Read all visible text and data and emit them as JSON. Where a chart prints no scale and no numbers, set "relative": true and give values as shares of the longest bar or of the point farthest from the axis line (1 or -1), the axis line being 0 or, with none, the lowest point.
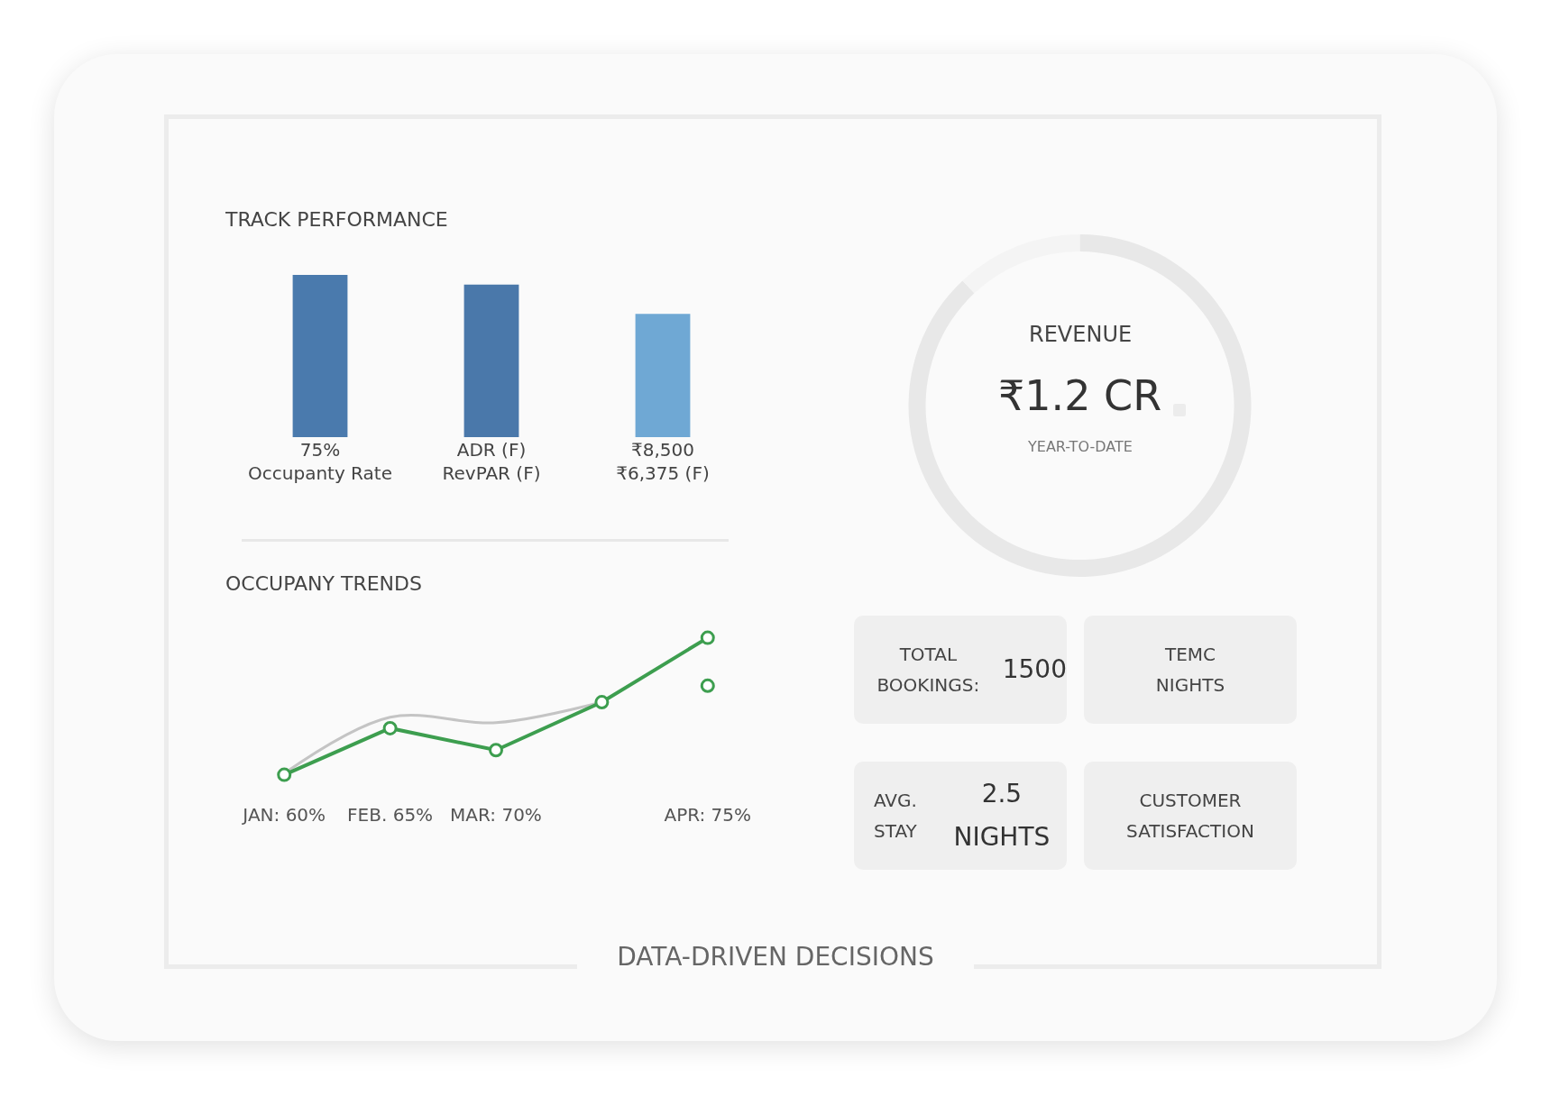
{
  "chart_data": [
    {
      "type": "bar",
      "title": "TRACK PERFORMANCE",
      "relative": true,
      "categories": [
        "75%\nOccupanty Rate",
        "ADR (F)\nRevPAR (F)",
        "₹8,500\n₹6,375 (F)"
      ],
      "values": [
        1,
        0.94,
        0.76
      ],
      "colors": [
        "#4a7aad",
        "#4a78aa",
        "#6fa8d4"
      ]
    },
    {
      "type": "line",
      "title": "OCCUPANY TRENDS",
      "relative": true,
      "marker": "circle",
      "categories": [
        "JAN: 60%",
        "FEB. 65%",
        "MAR: 70%",
        null,
        "APR: 75%"
      ],
      "series": [
        {
          "type": "line",
          "color": "#c4c4c4",
          "marker": "none",
          "values": [
            0.01,
            0.42,
            0.38,
            0.53,
            null
          ]
        },
        {
          "type": "line",
          "color": "#3d9e4f",
          "values": [
            0,
            0.34,
            0.18,
            0.53,
            1
          ]
        },
        {
          "type": "scatter",
          "color": "#3d9e4f",
          "values": [
            null,
            null,
            null,
            null,
            0.65
          ]
        }
      ]
    },
    {
      "type": "donut",
      "categories": [
        null,
        null
      ],
      "values": [
        88,
        12
      ],
      "colors": [
        "#e8e8e8",
        "#f4f4f4"
      ],
      "annotations": [
        "REVENUE",
        "₹1.2 CR",
        "YEAR-TO-DATE"
      ]
    },
    {
      "type": "other",
      "annotations": [
        "TOTAL BOOKINGS:\n1500",
        "TEMC\nNIGHTS",
        "AVG. STAY\n2.5 NIGHTS",
        "CUSTOMER\nSATISFACTION",
        "DATA-DRIVEN DECISIONS"
      ]
    }
  ]
}
